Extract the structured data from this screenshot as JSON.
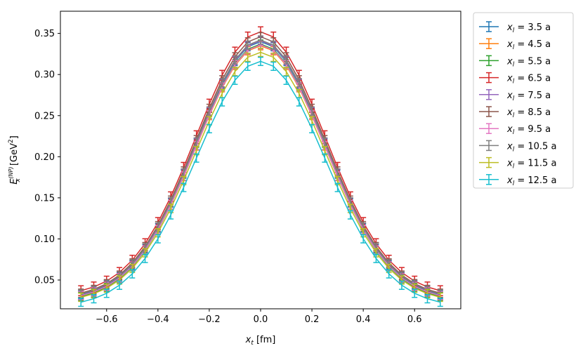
{
  "chart_data": {
    "type": "line",
    "xlabel_main": "x",
    "xlabel_sub": "t",
    "xlabel_unit": "[fm]",
    "ylabel_main": "E",
    "ylabel_sub": "x",
    "ylabel_sup": "(NP)",
    "ylabel_unit": "[GeV",
    "ylabel_unit_sup": "2",
    "ylabel_unit_close": "]",
    "xlim": [
      -0.78,
      0.78
    ],
    "ylim": [
      0.015,
      0.377
    ],
    "xticks": [
      -0.6,
      -0.4,
      -0.2,
      0.0,
      0.2,
      0.4,
      0.6
    ],
    "xtick_labels": [
      "−0.6",
      "−0.4",
      "−0.2",
      "0.0",
      "0.2",
      "0.4",
      "0.6"
    ],
    "yticks": [
      0.05,
      0.1,
      0.15,
      0.2,
      0.25,
      0.3,
      0.35
    ],
    "ytick_labels": [
      "0.05",
      "0.10",
      "0.15",
      "0.20",
      "0.25",
      "0.30",
      "0.35"
    ],
    "grid": false,
    "legend_placement": "outside-upper-right",
    "x": [
      -0.7,
      -0.65,
      -0.6,
      -0.55,
      -0.5,
      -0.45,
      -0.4,
      -0.35,
      -0.3,
      -0.25,
      -0.2,
      -0.15,
      -0.1,
      -0.05,
      0.0,
      0.05,
      0.1,
      0.15,
      0.2,
      0.25,
      0.3,
      0.35,
      0.4,
      0.45,
      0.5,
      0.55,
      0.6,
      0.65,
      0.7
    ],
    "series": [
      {
        "name_base": "x",
        "name_sub": "l",
        "name_rest": " = 3.5 a",
        "color": "#1f77b4",
        "peak": 0.34,
        "tail": 0.032,
        "err": 0.005
      },
      {
        "name_base": "x",
        "name_sub": "l",
        "name_rest": " = 4.5 a",
        "color": "#ff7f0e",
        "peak": 0.335,
        "tail": 0.031,
        "err": 0.005
      },
      {
        "name_base": "x",
        "name_sub": "l",
        "name_rest": " = 5.5 a",
        "color": "#2ca02c",
        "peak": 0.337,
        "tail": 0.03,
        "err": 0.005
      },
      {
        "name_base": "x",
        "name_sub": "l",
        "name_rest": " = 6.5 a",
        "color": "#d62728",
        "peak": 0.352,
        "tail": 0.037,
        "err": 0.006
      },
      {
        "name_base": "x",
        "name_sub": "l",
        "name_rest": " = 7.5 a",
        "color": "#9467bd",
        "peak": 0.341,
        "tail": 0.033,
        "err": 0.005
      },
      {
        "name_base": "x",
        "name_sub": "l",
        "name_rest": " = 8.5 a",
        "color": "#8c564b",
        "peak": 0.346,
        "tail": 0.034,
        "err": 0.005
      },
      {
        "name_base": "x",
        "name_sub": "l",
        "name_rest": " = 9.5 a",
        "color": "#e377c2",
        "peak": 0.336,
        "tail": 0.031,
        "err": 0.005
      },
      {
        "name_base": "x",
        "name_sub": "l",
        "name_rest": " = 10.5 a",
        "color": "#7f7f7f",
        "peak": 0.342,
        "tail": 0.033,
        "err": 0.005
      },
      {
        "name_base": "x",
        "name_sub": "l",
        "name_rest": " = 11.5 a",
        "color": "#bcbd22",
        "peak": 0.327,
        "tail": 0.029,
        "err": 0.005
      },
      {
        "name_base": "x",
        "name_sub": "l",
        "name_rest": " = 12.5 a",
        "color": "#17becf",
        "peak": 0.316,
        "tail": 0.023,
        "err": 0.005
      }
    ]
  }
}
